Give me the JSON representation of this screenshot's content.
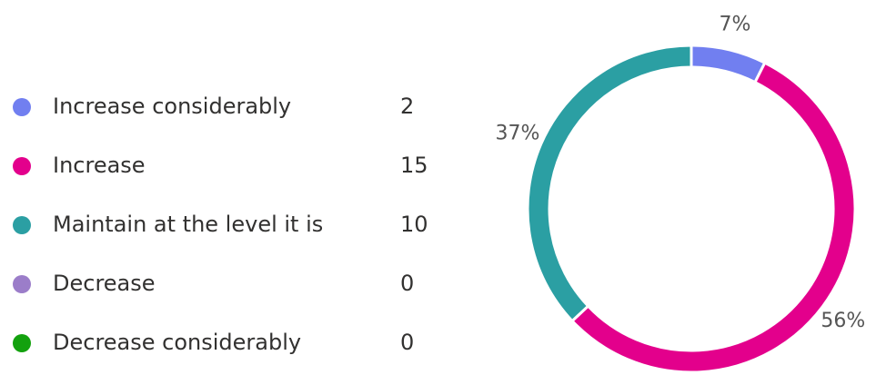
{
  "chart_data": {
    "type": "donut",
    "categories": [
      "Increase considerably",
      "Increase",
      "Maintain at the level it is",
      "Decrease",
      "Decrease considerably"
    ],
    "values": [
      2,
      15,
      10,
      0,
      0
    ],
    "value_labels": [
      "7%",
      "56%",
      "37%",
      null,
      null
    ],
    "colors": [
      "#717ff0",
      "#e3008c",
      "#2b9fa3",
      "#9b7dc9",
      "#13a10e"
    ]
  }
}
